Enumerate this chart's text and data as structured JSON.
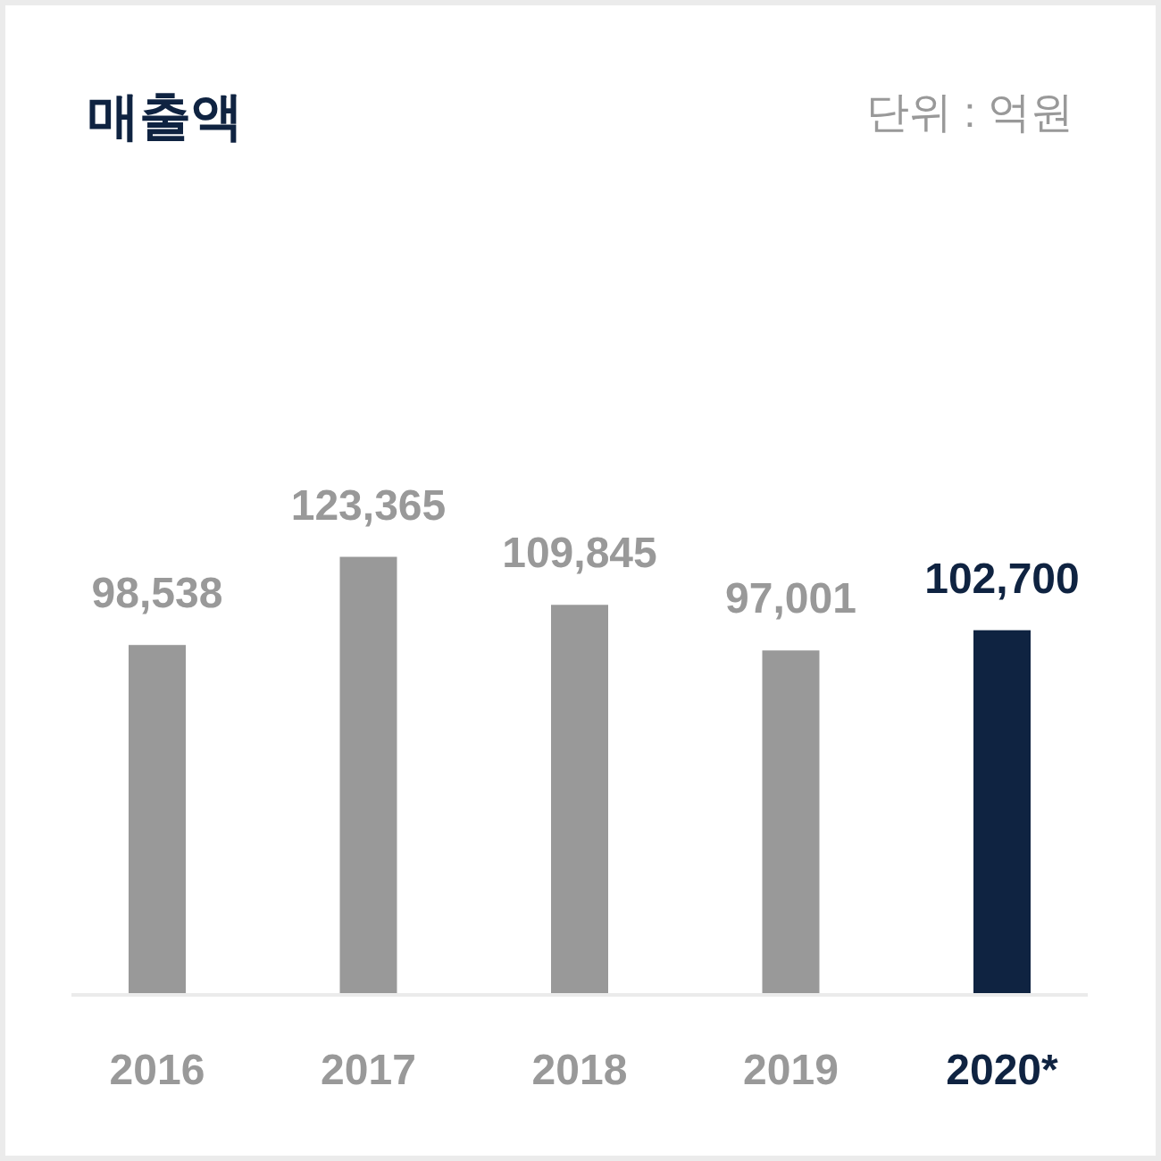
{
  "chart_data": {
    "type": "bar",
    "title": "매출액",
    "annotations": [
      "단위 : 억원"
    ],
    "categories": [
      "2016",
      "2017",
      "2018",
      "2019",
      "2020*"
    ],
    "values": [
      98538,
      123365,
      109845,
      97001,
      102700
    ],
    "value_labels": [
      "98,538",
      "123,365",
      "109,845",
      "97,001",
      "102,700"
    ],
    "colors": [
      "#999999",
      "#999999",
      "#999999",
      "#999999",
      "#0f2341"
    ]
  }
}
